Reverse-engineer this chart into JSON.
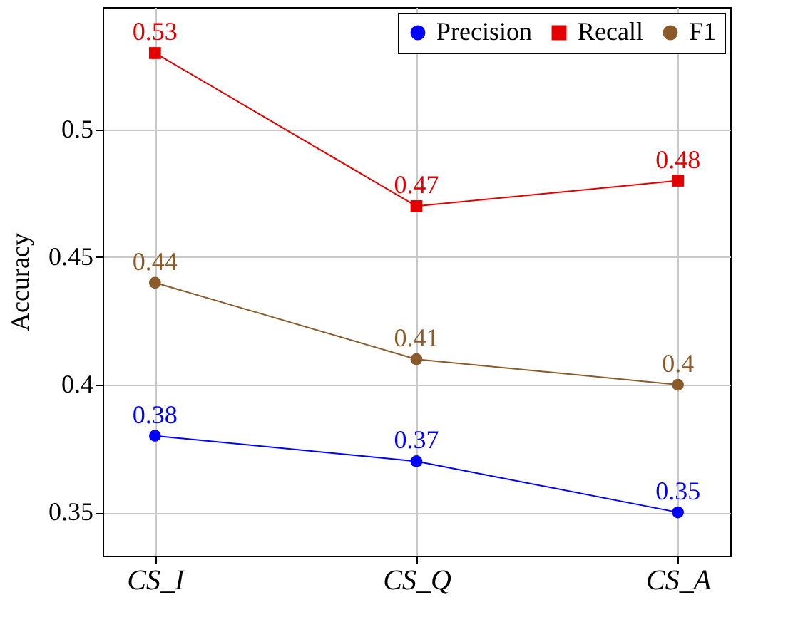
{
  "chart_data": {
    "type": "line",
    "ylabel": "Accuracy",
    "categories": [
      "CS_I",
      "CS_Q",
      "CS_A"
    ],
    "series": [
      {
        "name": "Precision",
        "color": "#0000ff",
        "marker": "circle",
        "values": [
          0.38,
          0.37,
          0.35
        ]
      },
      {
        "name": "Recall",
        "color": "#e50000",
        "marker": "square",
        "values": [
          0.53,
          0.47,
          0.48
        ]
      },
      {
        "name": "F1",
        "color": "#8b5a2b",
        "marker": "circle",
        "values": [
          0.44,
          0.41,
          0.4
        ]
      }
    ],
    "ylim": [
      0.333,
      0.548
    ],
    "yticks": [
      0.35,
      {
        "value": 0.4,
        "label": "0.4"
      },
      0.45,
      {
        "value": 0.5,
        "label": "0.5"
      }
    ],
    "grid": true,
    "legend": "top right",
    "data_labels": true,
    "line_style": "solid"
  }
}
